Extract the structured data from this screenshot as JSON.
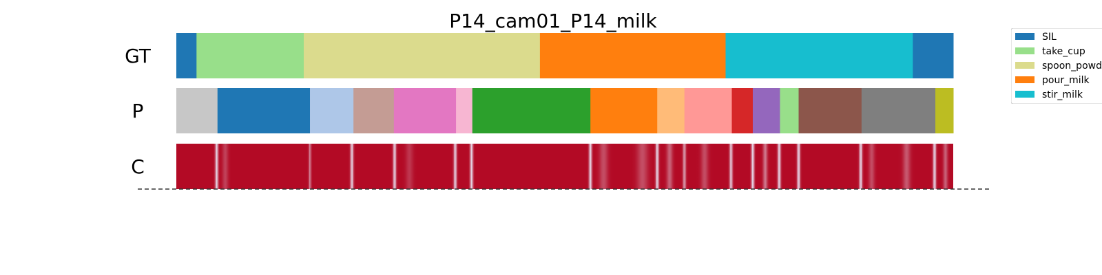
{
  "chart_data": {
    "type": "segmentation_timeline",
    "title": "P14_cam01_P14_milk",
    "x_range": [
      0,
      1
    ],
    "rows": [
      {
        "label": "GT",
        "segments": [
          {
            "start": 0.0,
            "end": 0.026,
            "color": "#1f77b4"
          },
          {
            "start": 0.026,
            "end": 0.164,
            "color": "#98df8a"
          },
          {
            "start": 0.164,
            "end": 0.468,
            "color": "#dbdb8d"
          },
          {
            "start": 0.468,
            "end": 0.707,
            "color": "#ff7f0e"
          },
          {
            "start": 0.707,
            "end": 0.948,
            "color": "#17becf"
          },
          {
            "start": 0.948,
            "end": 1.0,
            "color": "#1f77b4"
          }
        ]
      },
      {
        "label": "P",
        "segments": [
          {
            "start": 0.0,
            "end": 0.053,
            "color": "#c7c7c7"
          },
          {
            "start": 0.053,
            "end": 0.172,
            "color": "#1f77b4"
          },
          {
            "start": 0.172,
            "end": 0.228,
            "color": "#aec7e8"
          },
          {
            "start": 0.228,
            "end": 0.28,
            "color": "#c49c94"
          },
          {
            "start": 0.28,
            "end": 0.36,
            "color": "#e377c2"
          },
          {
            "start": 0.36,
            "end": 0.381,
            "color": "#f7b6d2"
          },
          {
            "start": 0.381,
            "end": 0.533,
            "color": "#2ca02c"
          },
          {
            "start": 0.533,
            "end": 0.619,
            "color": "#ff7f0e"
          },
          {
            "start": 0.619,
            "end": 0.654,
            "color": "#ffbb78"
          },
          {
            "start": 0.654,
            "end": 0.715,
            "color": "#ff9896"
          },
          {
            "start": 0.715,
            "end": 0.742,
            "color": "#d62728"
          },
          {
            "start": 0.742,
            "end": 0.777,
            "color": "#9467bd"
          },
          {
            "start": 0.777,
            "end": 0.801,
            "color": "#98df8a"
          },
          {
            "start": 0.801,
            "end": 0.882,
            "color": "#8c564b"
          },
          {
            "start": 0.882,
            "end": 0.977,
            "color": "#7f7f7f"
          },
          {
            "start": 0.977,
            "end": 1.0,
            "color": "#bcbd22"
          }
        ]
      },
      {
        "label": "C",
        "base_color": "#b30a25",
        "dips": [
          {
            "center": 0.052,
            "width": 0.004,
            "depth": 0.95
          },
          {
            "center": 0.063,
            "width": 0.008,
            "depth": 0.25
          },
          {
            "center": 0.172,
            "width": 0.003,
            "depth": 0.6
          },
          {
            "center": 0.226,
            "width": 0.004,
            "depth": 0.95
          },
          {
            "center": 0.281,
            "width": 0.004,
            "depth": 0.95
          },
          {
            "center": 0.3,
            "width": 0.01,
            "depth": 0.2
          },
          {
            "center": 0.359,
            "width": 0.004,
            "depth": 0.95
          },
          {
            "center": 0.38,
            "width": 0.004,
            "depth": 0.95
          },
          {
            "center": 0.533,
            "width": 0.004,
            "depth": 0.95
          },
          {
            "center": 0.55,
            "width": 0.012,
            "depth": 0.3
          },
          {
            "center": 0.6,
            "width": 0.015,
            "depth": 0.3
          },
          {
            "center": 0.619,
            "width": 0.004,
            "depth": 0.98
          },
          {
            "center": 0.635,
            "width": 0.008,
            "depth": 0.4
          },
          {
            "center": 0.654,
            "width": 0.004,
            "depth": 0.7
          },
          {
            "center": 0.68,
            "width": 0.01,
            "depth": 0.3
          },
          {
            "center": 0.714,
            "width": 0.004,
            "depth": 0.9
          },
          {
            "center": 0.742,
            "width": 0.004,
            "depth": 0.98
          },
          {
            "center": 0.758,
            "width": 0.006,
            "depth": 0.5
          },
          {
            "center": 0.776,
            "width": 0.004,
            "depth": 0.98
          },
          {
            "center": 0.801,
            "width": 0.004,
            "depth": 0.98
          },
          {
            "center": 0.881,
            "width": 0.004,
            "depth": 0.98
          },
          {
            "center": 0.895,
            "width": 0.008,
            "depth": 0.3
          },
          {
            "center": 0.94,
            "width": 0.01,
            "depth": 0.35
          },
          {
            "center": 0.976,
            "width": 0.004,
            "depth": 0.98
          },
          {
            "center": 0.99,
            "width": 0.006,
            "depth": 0.4
          }
        ]
      }
    ],
    "legend": {
      "position": "top-right",
      "items": [
        {
          "label": "SIL",
          "color": "#1f77b4"
        },
        {
          "label": "take_cup",
          "color": "#98df8a"
        },
        {
          "label": "spoon_powd",
          "color": "#dbdb8d"
        },
        {
          "label": "pour_milk",
          "color": "#ff7f0e"
        },
        {
          "label": "stir_milk",
          "color": "#17becf"
        }
      ]
    }
  }
}
